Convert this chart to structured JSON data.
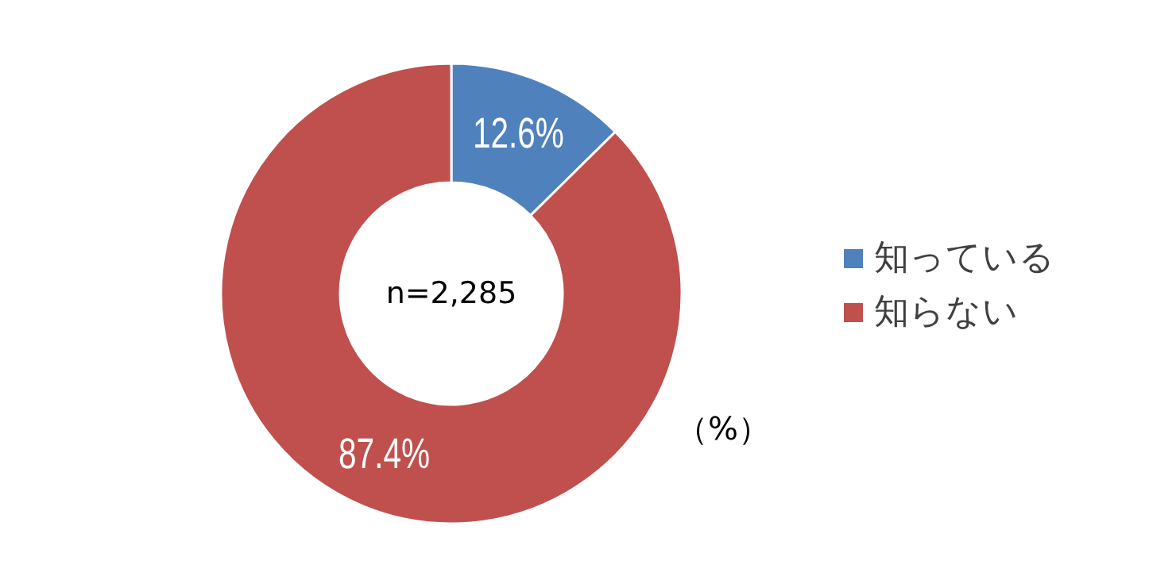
{
  "chart_data": {
    "type": "donut",
    "categories": [
      "知っている",
      "知らない"
    ],
    "values": [
      12.6,
      87.4
    ],
    "colors": [
      "#4f81bd",
      "#c0504d"
    ],
    "value_labels": [
      "12.6%",
      "87.4%"
    ],
    "legend": "right",
    "annotations": [
      "n=2,285",
      "（%）"
    ]
  }
}
